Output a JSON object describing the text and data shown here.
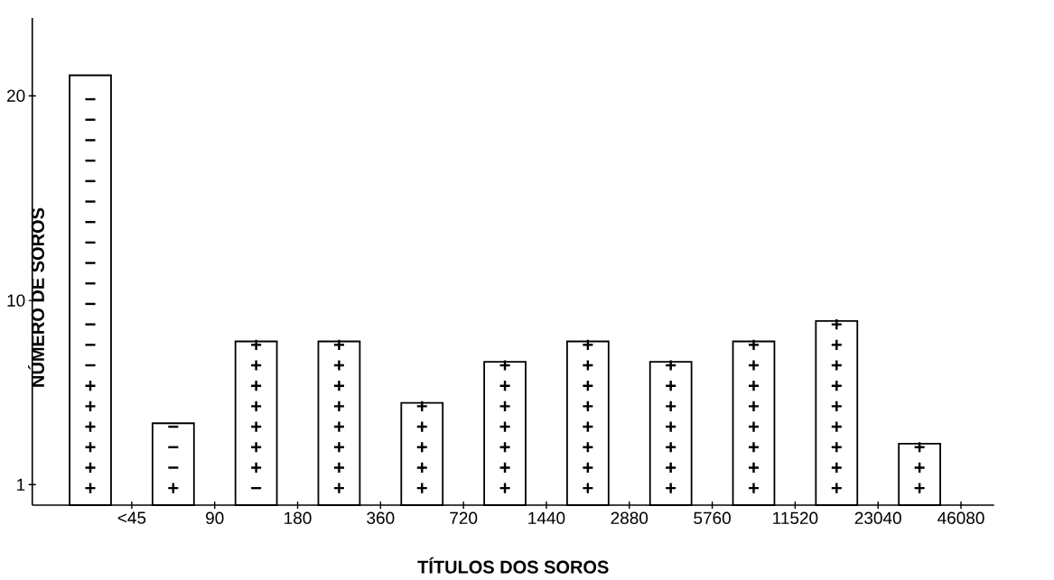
{
  "chart_data": {
    "type": "bar",
    "xlabel": "TÍTULOS DOS SOROS",
    "ylabel": "NÚMERO DE SOROS",
    "categories": [
      "<45",
      "90",
      "180",
      "360",
      "720",
      "1440",
      "2880",
      "5760",
      "11520",
      "23040",
      "46080"
    ],
    "values": [
      21,
      4,
      8,
      8,
      5,
      7,
      8,
      7,
      8,
      9,
      3
    ],
    "value_labels": [
      "− − − − − − − − − − − − − − + + + + + +",
      "− − − +",
      "+ + + + + + + −",
      "+ + + + + + + +",
      "+ + + + +",
      "+ + + + + + +",
      "+ + + + + + + +",
      "+ + + + + + +",
      "+ + + + + + + +",
      "+ + + + + + + + +",
      "+ + +"
    ],
    "color": "#ffffff",
    "ylim": [
      0,
      23.8
    ],
    "yticks": [
      1,
      10,
      20
    ],
    "grid": false
  }
}
